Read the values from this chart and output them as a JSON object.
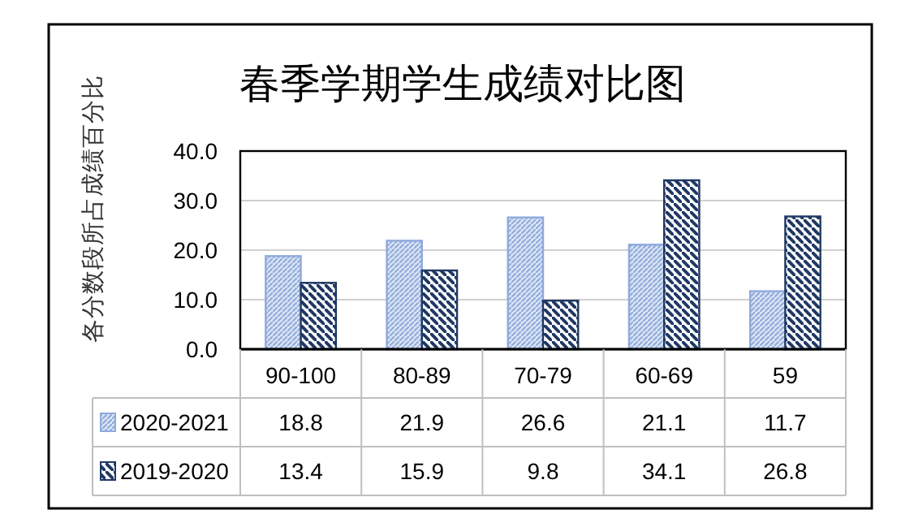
{
  "chart_data": {
    "type": "bar",
    "title": "春季学期学生成绩对比图",
    "ylabel": "各分数段所占成绩百分比",
    "categories": [
      "90-100",
      "80-89",
      "70-79",
      "60-69",
      "59"
    ],
    "series": [
      {
        "name": "2020-2021",
        "color": "#8faadc",
        "values": [
          18.8,
          21.9,
          26.6,
          21.1,
          11.7
        ]
      },
      {
        "name": "2019-2020",
        "color": "#203864",
        "values": [
          13.4,
          15.9,
          9.8,
          34.1,
          26.8
        ]
      }
    ],
    "ylim": [
      0,
      40
    ],
    "yticks": [
      {
        "value": 0,
        "label": "0.0"
      },
      {
        "value": 10,
        "label": "10.0"
      },
      {
        "value": 20,
        "label": "20.0"
      },
      {
        "value": 30,
        "label": "30.0"
      },
      {
        "value": 40,
        "label": "40.0"
      }
    ],
    "grid": "y",
    "data_labels": true,
    "legend": "bottom left"
  }
}
